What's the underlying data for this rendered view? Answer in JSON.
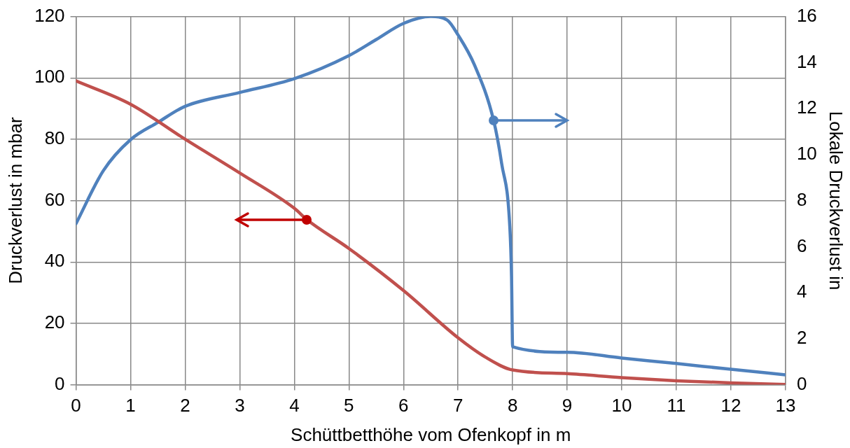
{
  "chart_data": {
    "type": "line",
    "xlabel": "Schüttbetthöhe vom Ofenkopf in m",
    "ylabel": "Druckverlust in mbar",
    "y2label": "Lokale Druckverlust in",
    "xlim": [
      0,
      13
    ],
    "xticks": [
      0,
      1,
      2,
      3,
      4,
      5,
      6,
      7,
      8,
      9,
      10,
      11,
      12,
      13
    ],
    "ylim": [
      0,
      120
    ],
    "yticks": [
      0,
      20,
      40,
      60,
      80,
      100,
      120
    ],
    "y2lim": [
      0,
      16
    ],
    "y2ticks": [
      0,
      2,
      4,
      6,
      8,
      10,
      12,
      14,
      16
    ],
    "grid": true,
    "legend": false,
    "marker": "none",
    "line_style": "solid",
    "series": [
      {
        "color": "#c0504d",
        "x": [
          0,
          1,
          2,
          3,
          4,
          4.23,
          5,
          6,
          7,
          7.5,
          8,
          9,
          10,
          11,
          12,
          13
        ],
        "values": [
          99,
          91.4,
          80,
          69,
          57.5,
          53.8,
          44.4,
          30.7,
          15.3,
          9,
          4.8,
          3.6,
          2.3,
          1.3,
          0.6,
          0.1
        ]
      },
      {
        "color": "#4f81bd",
        "axis": "y2",
        "x": [
          0,
          0.5,
          1,
          1.5,
          2,
          3,
          4,
          5,
          5.5,
          6,
          6.5,
          6.8,
          7,
          7.3,
          7.65,
          7.8,
          7.95,
          7.98,
          8,
          9,
          10,
          11,
          12,
          13
        ],
        "values": [
          7,
          9.3,
          10.65,
          11.4,
          12.1,
          12.7,
          13.3,
          14.3,
          15,
          15.7,
          16,
          15.85,
          15.2,
          13.9,
          11.5,
          9.6,
          6.8,
          4.7,
          1.65,
          1.41,
          1.16,
          0.92,
          0.67,
          0.43
        ]
      }
    ]
  }
}
